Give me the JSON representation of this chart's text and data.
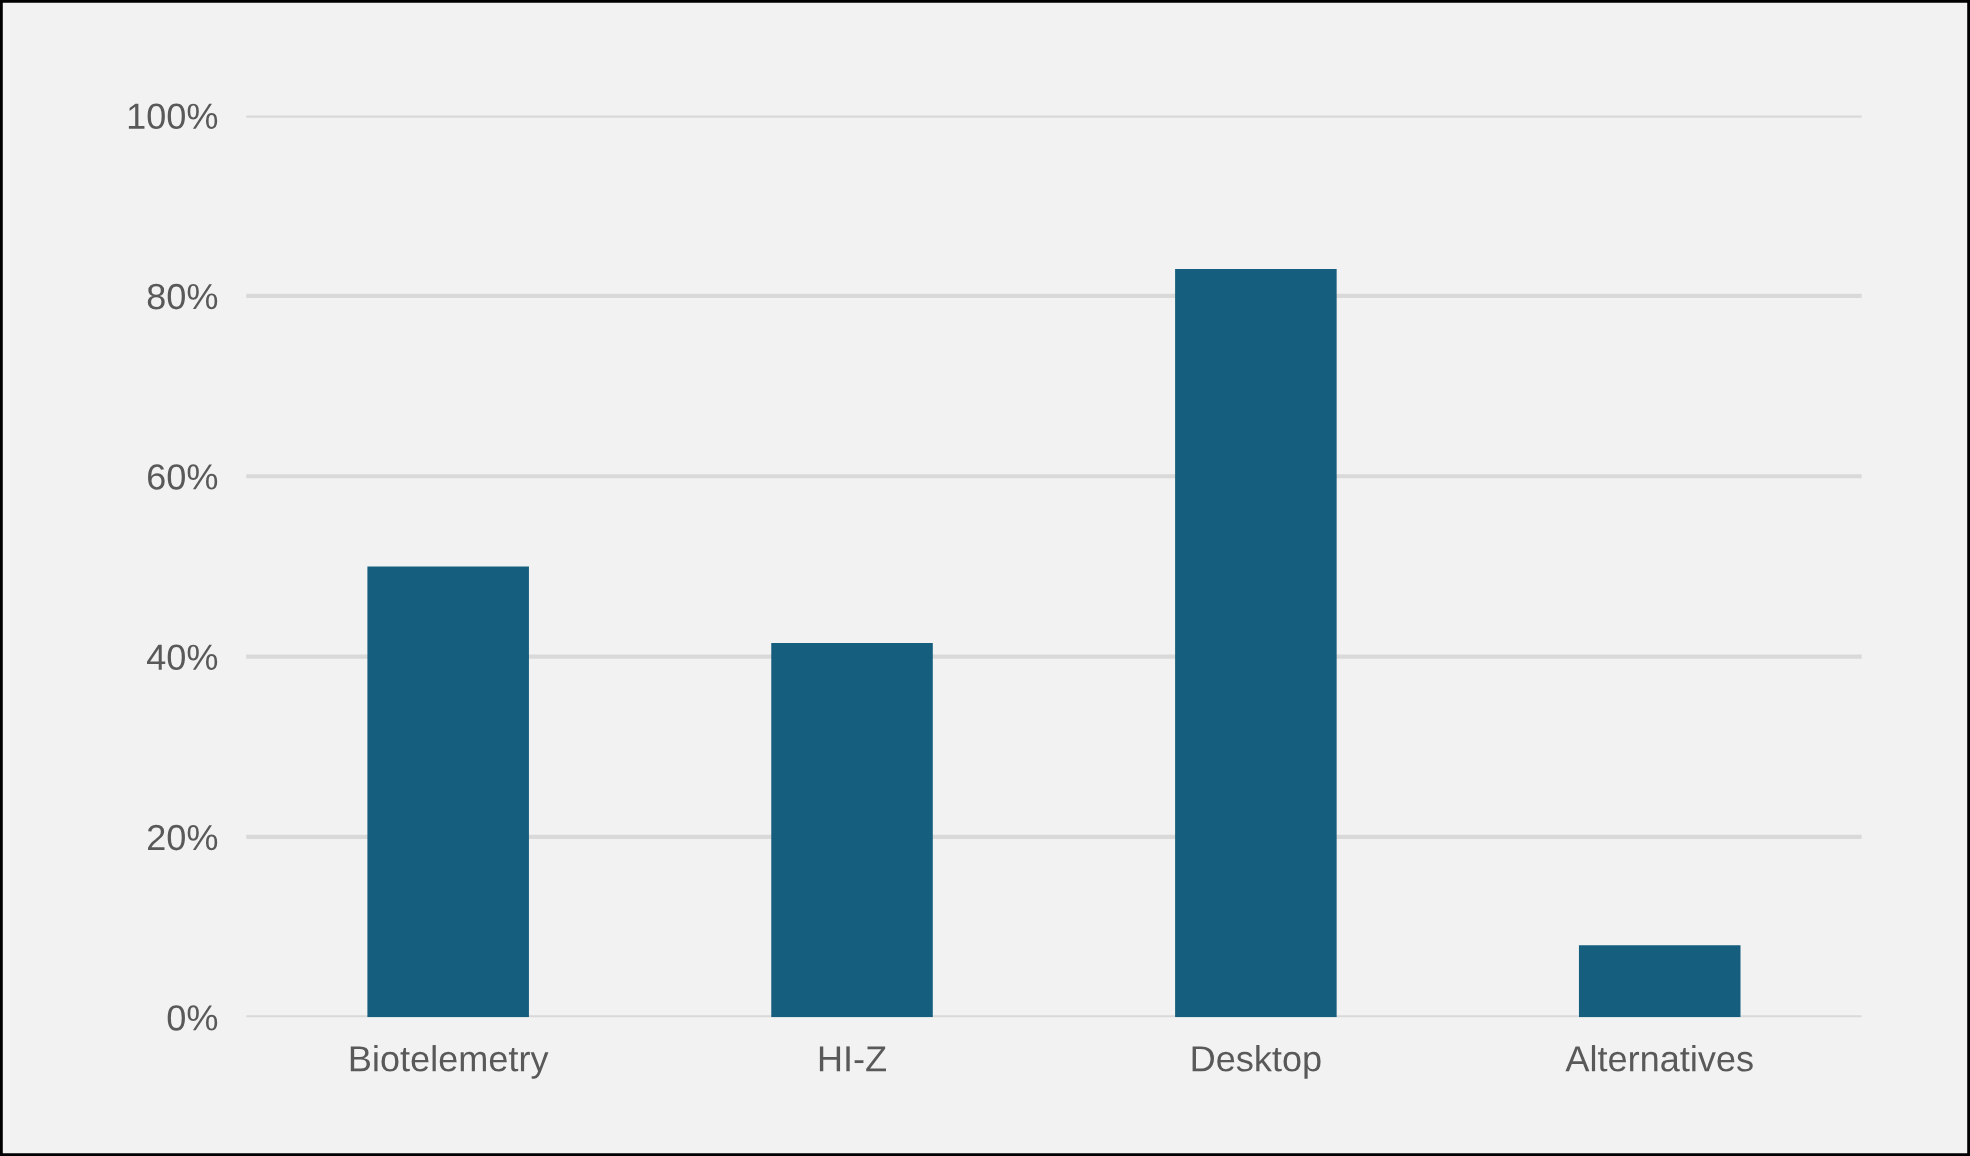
{
  "chart_data": {
    "type": "bar",
    "categories": [
      "Biotelemetry",
      "HI-Z",
      "Desktop",
      "Alternatives"
    ],
    "series": [
      {
        "color": "#155e7d",
        "values": [
          50,
          41.5,
          83,
          8
        ]
      }
    ],
    "ylim": [
      0,
      100
    ],
    "yticks": [
      {
        "value": 0,
        "label": "0%"
      },
      {
        "value": 20,
        "label": "20%"
      },
      {
        "value": 40,
        "label": "40%"
      },
      {
        "value": 60,
        "label": "60%"
      },
      {
        "value": 80,
        "label": "80%"
      },
      {
        "value": 100,
        "label": "100%"
      }
    ],
    "grid": "y",
    "legend": false
  }
}
